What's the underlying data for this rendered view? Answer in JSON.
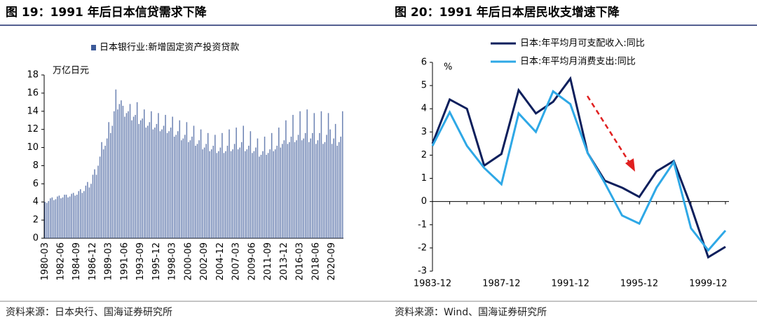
{
  "chart_data": [
    {
      "type": "bar",
      "title": "图 19：1991 年后日本信贷需求下降",
      "unit": "万亿日元",
      "source": "资料来源：日本央行、国海证券研究所",
      "categories": [
        "1980-03",
        null,
        null,
        null,
        null,
        null,
        null,
        null,
        null,
        "1982-06",
        null,
        null,
        null,
        null,
        null,
        null,
        null,
        null,
        "1984-09",
        null,
        null,
        null,
        null,
        null,
        null,
        null,
        null,
        "1986-12",
        null,
        null,
        null,
        null,
        null,
        null,
        null,
        null,
        "1989-03",
        null,
        null,
        null,
        null,
        null,
        null,
        null,
        null,
        "1991-06",
        null,
        null,
        null,
        null,
        null,
        null,
        null,
        null,
        "1993-09",
        null,
        null,
        null,
        null,
        null,
        null,
        null,
        null,
        "1995-12",
        null,
        null,
        null,
        null,
        null,
        null,
        null,
        null,
        "1998-03",
        null,
        null,
        null,
        null,
        null,
        null,
        null,
        null,
        "2000-06",
        null,
        null,
        null,
        null,
        null,
        null,
        null,
        null,
        "2002-09",
        null,
        null,
        null,
        null,
        null,
        null,
        null,
        null,
        "2004-12",
        null,
        null,
        null,
        null,
        null,
        null,
        null,
        null,
        "2007-03",
        null,
        null,
        null,
        null,
        null,
        null,
        null,
        null,
        "2009-06",
        null,
        null,
        null,
        null,
        null,
        null,
        null,
        null,
        "2011-09",
        null,
        null,
        null,
        null,
        null,
        null,
        null,
        null,
        "2013-12",
        null,
        null,
        null,
        null,
        null,
        null,
        null,
        null,
        "2016-03",
        null,
        null,
        null,
        null,
        null,
        null,
        null,
        null,
        "2018-06",
        null,
        null,
        null,
        null,
        null,
        null,
        null,
        null,
        "2020-09",
        null,
        null,
        null,
        null,
        null,
        null
      ],
      "series": [
        {
          "name": "日本银行业:新增固定资产投资贷款",
          "color": "#3c5a99",
          "values": [
            4.0,
            3.9,
            4.1,
            4.4,
            4.5,
            4.2,
            4.3,
            4.6,
            4.7,
            4.4,
            4.5,
            4.8,
            4.8,
            4.5,
            4.6,
            4.9,
            5.0,
            4.7,
            4.8,
            5.2,
            5.4,
            5.0,
            5.2,
            5.8,
            6.2,
            5.6,
            6.0,
            7.0,
            7.6,
            7.0,
            8.0,
            9.0,
            10.6,
            9.8,
            10.2,
            11.0,
            12.8,
            11.6,
            12.4,
            14.0,
            16.4,
            14.2,
            14.8,
            15.2,
            14.6,
            13.4,
            13.8,
            14.0,
            14.8,
            13.0,
            13.4,
            13.6,
            15.0,
            12.6,
            13.0,
            13.2,
            14.2,
            12.2,
            12.4,
            12.8,
            14.0,
            12.0,
            12.2,
            12.6,
            13.8,
            11.8,
            12.0,
            12.4,
            13.6,
            11.6,
            11.8,
            12.2,
            13.4,
            11.2,
            11.4,
            11.8,
            13.0,
            10.8,
            11.0,
            11.4,
            12.8,
            10.6,
            10.8,
            11.2,
            12.4,
            10.2,
            10.4,
            10.8,
            12.0,
            9.8,
            10.0,
            10.4,
            11.6,
            9.6,
            9.8,
            10.2,
            11.4,
            9.4,
            9.6,
            10.0,
            11.6,
            9.4,
            9.6,
            10.2,
            12.0,
            9.6,
            9.8,
            10.4,
            12.2,
            9.8,
            10.0,
            10.6,
            12.4,
            9.6,
            9.8,
            10.2,
            11.8,
            9.4,
            9.6,
            10.0,
            11.0,
            9.0,
            9.2,
            9.6,
            11.2,
            9.2,
            9.4,
            9.8,
            11.6,
            9.6,
            9.8,
            10.2,
            12.2,
            10.0,
            10.4,
            10.8,
            13.0,
            10.4,
            10.6,
            11.2,
            13.6,
            10.6,
            10.8,
            11.4,
            14.0,
            10.8,
            11.0,
            11.6,
            14.2,
            10.6,
            11.0,
            11.6,
            13.8,
            10.4,
            10.8,
            11.6,
            14.0,
            10.4,
            10.6,
            11.4,
            13.8,
            12.0,
            10.4,
            11.0,
            12.6,
            10.2,
            10.6,
            11.2,
            14.0
          ]
        }
      ],
      "ylim": [
        0,
        18
      ],
      "yticks": [
        0,
        2,
        4,
        6,
        8,
        10,
        12,
        14,
        16,
        18
      ]
    },
    {
      "type": "line",
      "title": "图 20：1991 年后日本居民收支增速下降",
      "unit": "%",
      "source": "资料来源：Wind、国海证券研究所",
      "categories": [
        "1983-12",
        null,
        null,
        null,
        "1987-12",
        null,
        null,
        null,
        "1991-12",
        null,
        null,
        null,
        "1995-12",
        null,
        null,
        null,
        "1999-12",
        null
      ],
      "series": [
        {
          "name": "日本:年平均月可支配收入:同比",
          "color": "#0d1f5c",
          "values": [
            2.5,
            4.4,
            4.0,
            1.55,
            2.05,
            4.8,
            3.8,
            4.3,
            5.3,
            2.1,
            0.9,
            0.6,
            0.2,
            1.3,
            1.75,
            -0.2,
            -2.4,
            -1.95
          ]
        },
        {
          "name": "日本:年平均月消费支出:同比",
          "color": "#2ea8e6",
          "values": [
            2.4,
            3.85,
            2.4,
            1.45,
            0.75,
            3.8,
            3.0,
            4.75,
            4.2,
            2.1,
            0.8,
            -0.6,
            -0.95,
            0.6,
            1.7,
            -1.15,
            -2.1,
            -1.25
          ]
        }
      ],
      "ylim": [
        -3,
        6
      ],
      "yticks": [
        -3,
        -2,
        -1,
        0,
        1,
        2,
        3,
        4,
        5,
        6
      ]
    }
  ]
}
